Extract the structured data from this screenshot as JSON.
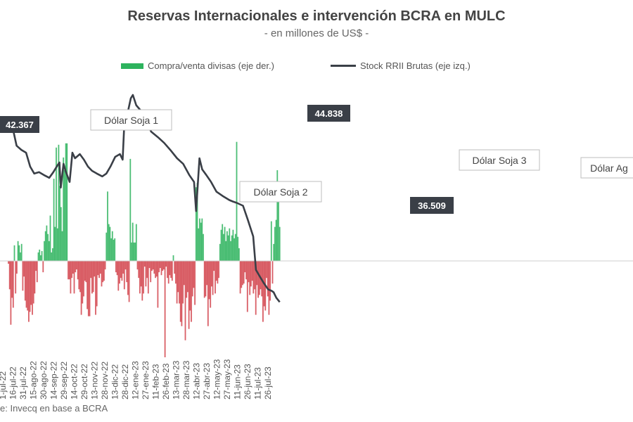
{
  "header": {
    "title": "Reservas Internacionales e intervención BCRA en MULC",
    "subtitle": "- en millones de US$ -"
  },
  "legend": {
    "bars": "Compra/venta divisas (eje der.)",
    "line": "Stock RRII Brutas (eje izq.)"
  },
  "source": "e: Invecq en base a BCRA",
  "colors": {
    "buy": "#2db35d",
    "sell": "#d2434b",
    "line": "#3a3f47",
    "label_bg": "#3a3f47"
  },
  "chart_data": {
    "type": "bar+line",
    "x_tick_labels": [
      "1-jul-22",
      "16-jul-22",
      "31-jul-22",
      "15-ago-22",
      "30-ago-22",
      "14-sep-22",
      "29-sep-22",
      "14-oct-22",
      "29-oct-22",
      "13-nov-22",
      "28-nov-22",
      "13-dic-22",
      "28-dic-22",
      "12-ene-23",
      "27-ene-23",
      "11-feb-23",
      "26-feb-23",
      "13-mar-23",
      "28-mar-23",
      "12-abr-23",
      "27-abr-23",
      "12-may-23",
      "27-may-23",
      "11-jun-23",
      "26-jun-23",
      "11-jul-23",
      "26-jul-23"
    ],
    "series_line": {
      "name": "Stock RRII Brutas (eje izq.)",
      "axis": "left",
      "points": [
        [
          "1-jul-22",
          42367
        ],
        [
          "8-jul-22",
          42300
        ],
        [
          "13-jul-22",
          41200
        ],
        [
          "20-jul-22",
          40900
        ],
        [
          "27-jul-22",
          40700
        ],
        [
          "2-ago-22",
          39700
        ],
        [
          "8-ago-22",
          39200
        ],
        [
          "15-ago-22",
          39300
        ],
        [
          "22-ago-22",
          39100
        ],
        [
          "30-ago-22",
          38900
        ],
        [
          "5-sep-22",
          39300
        ],
        [
          "10-sep-22",
          39700
        ],
        [
          "14-sep-22",
          40000
        ],
        [
          "16-sep-22",
          38200
        ],
        [
          "20-sep-22",
          39900
        ],
        [
          "23-sep-22",
          39400
        ],
        [
          "29-sep-22",
          38600
        ],
        [
          "3-oct-22",
          40700
        ],
        [
          "7-oct-22",
          40300
        ],
        [
          "14-oct-22",
          40600
        ],
        [
          "20-oct-22",
          40200
        ],
        [
          "26-oct-22",
          39700
        ],
        [
          "1-nov-22",
          39400
        ],
        [
          "8-nov-22",
          39200
        ],
        [
          "16-nov-22",
          39000
        ],
        [
          "22-nov-22",
          39200
        ],
        [
          "28-nov-22",
          39700
        ],
        [
          "5-dic-22",
          40400
        ],
        [
          "12-dic-22",
          40600
        ],
        [
          "16-dic-22",
          40200
        ],
        [
          "19-dic-22",
          43400
        ],
        [
          "24-dic-22",
          43700
        ],
        [
          "28-dic-22",
          44600
        ],
        [
          "31-dic-22",
          44838
        ],
        [
          "5-ene-23",
          44100
        ],
        [
          "12-ene-23",
          43700
        ],
        [
          "20-ene-23",
          42900
        ],
        [
          "27-ene-23",
          42200
        ],
        [
          "6-feb-23",
          41800
        ],
        [
          "15-feb-23",
          41400
        ],
        [
          "24-feb-23",
          40900
        ],
        [
          "6-mar-23",
          40300
        ],
        [
          "15-mar-23",
          39900
        ],
        [
          "24-mar-23",
          39100
        ],
        [
          "31-mar-23",
          38600
        ],
        [
          "3-abr-23",
          36509
        ],
        [
          "8-abr-23",
          40300
        ],
        [
          "12-abr-23",
          39500
        ],
        [
          "18-abr-23",
          39100
        ],
        [
          "25-abr-23",
          38600
        ],
        [
          "3-may-23",
          37900
        ],
        [
          "12-may-23",
          37600
        ],
        [
          "22-may-23",
          37300
        ],
        [
          "27-may-23",
          37200
        ],
        [
          "2-jun-23",
          37100
        ],
        [
          "11-jun-23",
          36900
        ],
        [
          "18-jun-23",
          35900
        ],
        [
          "26-jun-23",
          34700
        ],
        [
          "30-jun-23",
          32300
        ],
        [
          "6-jul-23",
          31800
        ],
        [
          "11-jul-23",
          31400
        ],
        [
          "18-jul-23",
          30900
        ],
        [
          "23-jul-23",
          30800
        ],
        [
          "26-jul-23",
          30700
        ],
        [
          "30-jul-23",
          30300
        ],
        [
          "4-ago-23",
          30000
        ]
      ]
    },
    "series_bars": {
      "name": "Compra/venta divisas (eje der.)",
      "axis": "right",
      "x_start": "1-jul-22",
      "x_end": "4-ago-23",
      "values": [
        -20,
        -200,
        -450,
        -260,
        -330,
        110,
        -230,
        -90,
        140,
        110,
        60,
        120,
        -210,
        -110,
        -280,
        -330,
        -350,
        -430,
        -360,
        -310,
        -380,
        -300,
        -230,
        -70,
        -150,
        60,
        80,
        40,
        70,
        -80,
        140,
        210,
        250,
        190,
        140,
        320,
        60,
        90,
        580,
        240,
        800,
        230,
        820,
        530,
        380,
        210,
        730,
        640,
        830,
        830,
        -130,
        -130,
        -230,
        -120,
        -90,
        -230,
        -80,
        -60,
        -130,
        -200,
        -220,
        -380,
        -300,
        -250,
        -140,
        -150,
        -340,
        -390,
        -390,
        -120,
        -230,
        -220,
        -110,
        -380,
        -320,
        -100,
        -120,
        -90,
        -180,
        -150,
        -140,
        -60,
        200,
        490,
        260,
        240,
        160,
        210,
        150,
        160,
        -80,
        -100,
        -210,
        -160,
        -120,
        -140,
        -90,
        -200,
        -60,
        -150,
        -240,
        -290,
        720,
        130,
        270,
        130,
        130,
        260,
        -60,
        -120,
        -230,
        -180,
        -280,
        -230,
        -40,
        -180,
        -120,
        -230,
        -50,
        -150,
        -70,
        -60,
        -90,
        -120,
        -110,
        -330,
        -80,
        -50,
        -100,
        -70,
        -60,
        -680,
        -40,
        -120,
        -160,
        -100,
        -120,
        -140,
        40,
        -90,
        -160,
        -300,
        -220,
        -300,
        -430,
        -460,
        -300,
        -170,
        -560,
        -260,
        -220,
        -480,
        -350,
        -430,
        -250,
        -190,
        -310,
        520,
        550,
        230,
        300,
        270,
        300,
        190,
        -260,
        -250,
        -170,
        -460,
        -270,
        -330,
        -180,
        -240,
        -70,
        -230,
        -140,
        -160,
        -120,
        120,
        220,
        260,
        190,
        240,
        140,
        210,
        180,
        230,
        140,
        180,
        220,
        160,
        190,
        840,
        170,
        90,
        -230,
        -190,
        -170,
        -160,
        -80,
        -130,
        -360,
        -150,
        -240,
        -180,
        -140,
        -230,
        -200,
        -380,
        -170,
        -260,
        -240,
        -200,
        -250,
        -430,
        -320,
        -350,
        -120,
        -250,
        -380,
        -280,
        280,
        -160,
        120,
        240,
        290,
        640,
        500,
        240
      ]
    },
    "annotations": [
      {
        "text": "Dólar Soja 1",
        "type": "box"
      },
      {
        "text": "Dólar Soja 2",
        "type": "box"
      },
      {
        "text": "Dólar Soja 3",
        "type": "box"
      },
      {
        "text": "Dólar Ag",
        "type": "box"
      },
      {
        "text": "42.367",
        "type": "value",
        "x": "1-jul-22",
        "y": 42367
      },
      {
        "text": "44.838",
        "type": "value",
        "x": "31-dic-22",
        "y": 44838
      },
      {
        "text": "36.509",
        "type": "value",
        "x": "3-abr-23",
        "y": 36509
      }
    ],
    "left_axis_ylim": [
      20000,
      48000
    ],
    "right_axis_ylim": [
      -1000,
      1000
    ],
    "grid": false
  }
}
